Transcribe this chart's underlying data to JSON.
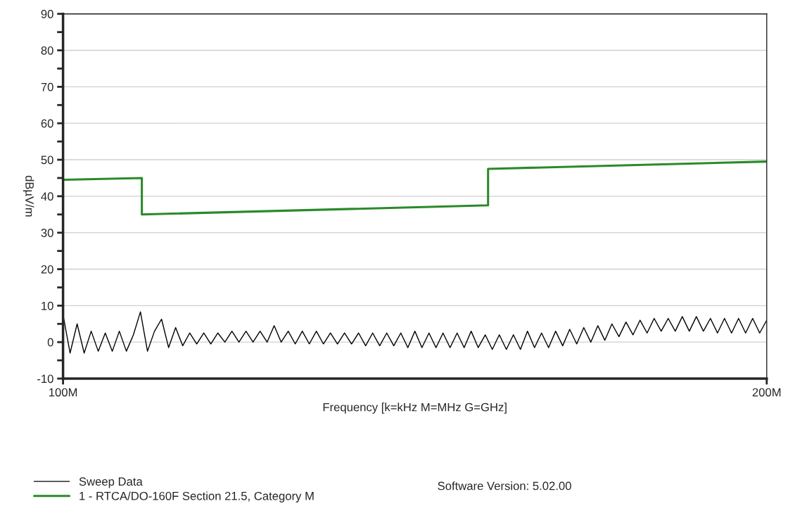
{
  "chart_data": {
    "type": "line",
    "xlabel": "Frequency [k=kHz M=MHz G=GHz]",
    "ylabel": "dBµV/m",
    "xlim": [
      100,
      200
    ],
    "xticks": [
      {
        "value": 100,
        "label": "100M"
      },
      {
        "value": 200,
        "label": "200M"
      }
    ],
    "ylim": [
      -10,
      90
    ],
    "yticks": [
      {
        "value": -10,
        "label": "-10"
      },
      {
        "value": -5,
        "label": null
      },
      0,
      {
        "value": 5,
        "label": null
      },
      10,
      {
        "value": 15,
        "label": null
      },
      20,
      {
        "value": 25,
        "label": null
      },
      30,
      {
        "value": 35,
        "label": null
      },
      40,
      {
        "value": 45,
        "label": null
      },
      50,
      {
        "value": 55,
        "label": null
      },
      60,
      {
        "value": 65,
        "label": null
      },
      70,
      {
        "value": 75,
        "label": null
      },
      80,
      {
        "value": 85,
        "label": null
      },
      90
    ],
    "grid": "y",
    "legend": "bottom left",
    "series": [
      {
        "name": "Sweep Data",
        "color": "#000000",
        "x": [
          100,
          101,
          102,
          103,
          104,
          105,
          106,
          107,
          108,
          109,
          110,
          111,
          112,
          113,
          114,
          115,
          116,
          117,
          118,
          119,
          120,
          121,
          122,
          123,
          124,
          125,
          126,
          127,
          128,
          129,
          130,
          131,
          132,
          133,
          134,
          135,
          136,
          137,
          138,
          139,
          140,
          141,
          142,
          143,
          144,
          145,
          146,
          147,
          148,
          149,
          150,
          151,
          152,
          153,
          154,
          155,
          156,
          157,
          158,
          159,
          160,
          161,
          162,
          163,
          164,
          165,
          166,
          167,
          168,
          169,
          170,
          171,
          172,
          173,
          174,
          175,
          176,
          177,
          178,
          179,
          180,
          181,
          182,
          183,
          184,
          185,
          186,
          187,
          188,
          189,
          190,
          191,
          192,
          193,
          194,
          195,
          196,
          197,
          198,
          199,
          200
        ],
        "values": [
          7.5,
          -3,
          5,
          -3,
          3,
          -2.5,
          2.5,
          -2.5,
          3,
          -2.5,
          2,
          8.3,
          -2.5,
          3,
          6.3,
          -1.5,
          4,
          -1,
          2.5,
          -0.5,
          2.5,
          -0.5,
          2.5,
          0,
          3,
          0,
          3,
          0,
          3,
          0,
          4.5,
          0,
          3,
          -0.5,
          3,
          -0.5,
          3,
          -0.5,
          2.5,
          -0.5,
          2.5,
          -0.5,
          2.5,
          -1,
          2.5,
          -1,
          2.5,
          -1,
          2.5,
          -1.5,
          3,
          -1.5,
          2.5,
          -1.5,
          2.5,
          -1.5,
          2.5,
          -1.5,
          3,
          -1.5,
          2,
          -2,
          2,
          -2,
          2,
          -2,
          3,
          -1.5,
          2.5,
          -1.5,
          3,
          -1,
          3.5,
          -0.5,
          4,
          0,
          4.5,
          0.5,
          5,
          1.5,
          5.5,
          2,
          6,
          2.5,
          6.5,
          3,
          6.5,
          3,
          7,
          3,
          7,
          3,
          6.5,
          2.5,
          6.5,
          2.5,
          6.5,
          2.5,
          6.5,
          2.5,
          6
        ]
      },
      {
        "name": "1 - RTCA/DO-160F Section 21.5, Category M",
        "color": "#2a8a2a",
        "x": [
          100,
          111.2,
          111.2,
          160.4,
          160.4,
          200
        ],
        "values": [
          44.5,
          45,
          35,
          37.5,
          47.5,
          49.5
        ]
      }
    ],
    "annotations": [
      "Software Version: 5.02.00"
    ]
  }
}
